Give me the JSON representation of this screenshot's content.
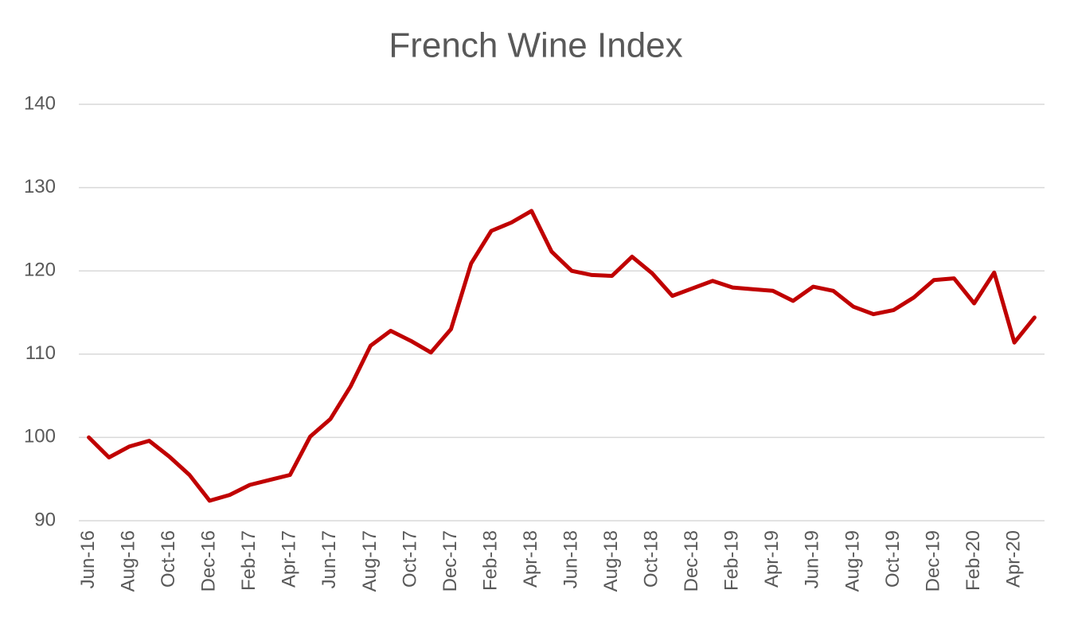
{
  "chart_data": {
    "type": "line",
    "title": "French Wine Index",
    "categories": [
      "Jun-16",
      null,
      "Aug-16",
      null,
      "Oct-16",
      null,
      "Dec-16",
      null,
      "Feb-17",
      null,
      "Apr-17",
      null,
      "Jun-17",
      null,
      "Aug-17",
      null,
      "Oct-17",
      null,
      "Dec-17",
      null,
      "Feb-18",
      null,
      "Apr-18",
      null,
      "Jun-18",
      null,
      "Aug-18",
      null,
      "Oct-18",
      null,
      "Dec-18",
      null,
      "Feb-19",
      null,
      "Apr-19",
      null,
      "Jun-19",
      null,
      "Aug-19",
      null,
      "Oct-19",
      null,
      "Dec-19",
      null,
      "Feb-20",
      null,
      "Apr-20",
      null
    ],
    "values": [
      100.0,
      97.6,
      98.9,
      99.6,
      97.7,
      95.5,
      92.4,
      93.1,
      94.3,
      94.9,
      95.5,
      100.1,
      102.2,
      106.1,
      111.0,
      112.8,
      111.6,
      110.2,
      113.0,
      120.9,
      124.8,
      125.8,
      127.2,
      122.3,
      120.0,
      119.5,
      119.4,
      121.7,
      119.7,
      117.0,
      117.9,
      118.8,
      118.0,
      117.8,
      117.6,
      116.4,
      118.1,
      117.6,
      115.7,
      114.8,
      115.3,
      116.8,
      118.9,
      119.1,
      116.1,
      119.8,
      111.4,
      114.4
    ],
    "color": "#c00000",
    "ylim": [
      90,
      140
    ],
    "yticks": [
      90,
      100,
      110,
      120,
      130,
      140
    ],
    "grid": true
  }
}
